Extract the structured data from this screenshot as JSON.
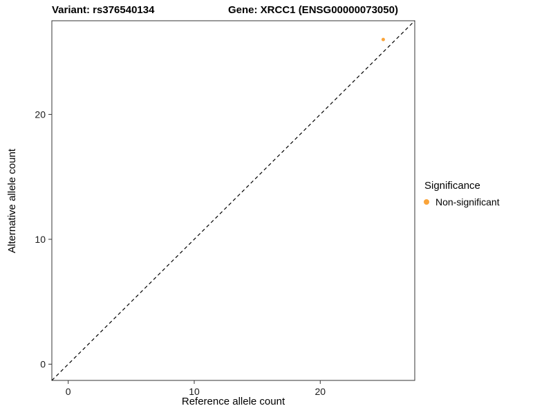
{
  "titles": {
    "variant": "Variant: rs376540134",
    "gene": "Gene: XRCC1 (ENSG00000073050)"
  },
  "chart_data": {
    "type": "scatter",
    "title": "Variant: rs376540134   Gene: XRCC1 (ENSG00000073050)",
    "xlabel": "Reference allele count",
    "ylabel": "Alternative allele count",
    "xlim": [
      -1.3,
      27.5
    ],
    "ylim": [
      -1.3,
      27.5
    ],
    "xticks": [
      0,
      10,
      20
    ],
    "yticks": [
      0,
      10,
      20
    ],
    "grid": false,
    "panel_border_color": "#333333",
    "reference_line": {
      "type": "identity",
      "style": "dashed",
      "color": "#000000"
    },
    "series": [
      {
        "name": "Non-significant",
        "color": "#FAA43A",
        "point_radius": 2.5,
        "points": [
          {
            "x": 25,
            "y": 26
          }
        ]
      }
    ],
    "legend": {
      "title": "Significance",
      "position": "right",
      "entries": [
        {
          "label": "Non-significant",
          "color": "#FAA43A"
        }
      ]
    }
  }
}
